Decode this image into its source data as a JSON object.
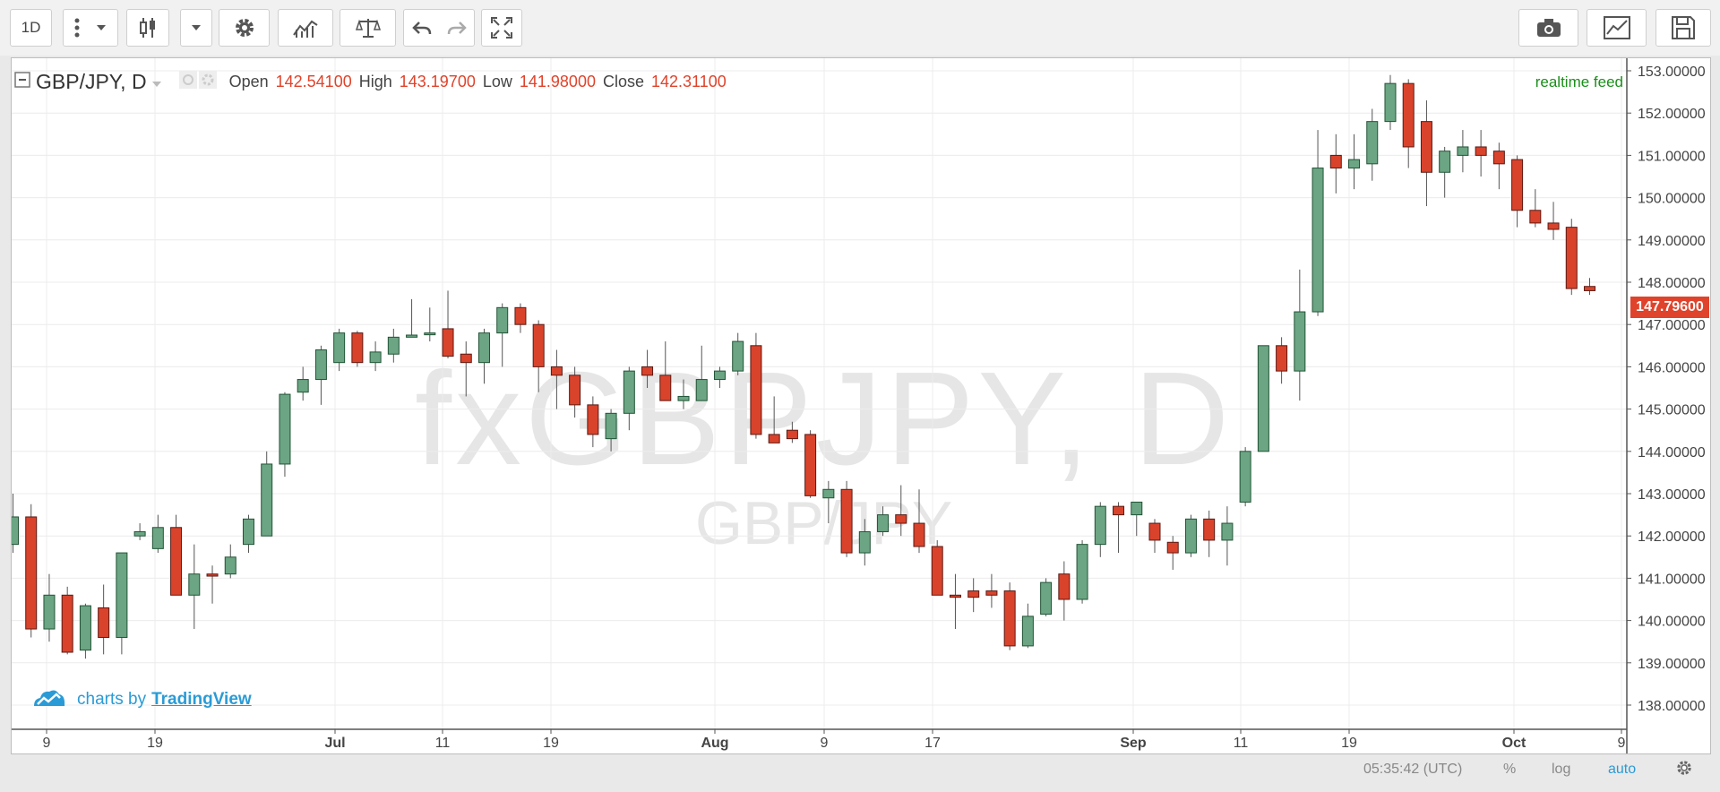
{
  "toolbar": {
    "interval_label": "1D",
    "buttons": [
      "more-icon",
      "dropdown-icon",
      "candles-icon",
      "dropdown-icon",
      "gear-icon",
      "indicators-icon",
      "compare-icon",
      "undo-icon",
      "redo-icon",
      "fullscreen-icon",
      "camera-icon",
      "chart-icon",
      "save-icon"
    ]
  },
  "legend": {
    "symbol": "GBP/JPY, D",
    "open_label": "Open",
    "open_value": "142.54100",
    "high_label": "High",
    "high_value": "143.19700",
    "low_label": "Low",
    "low_value": "141.98000",
    "close_label": "Close",
    "close_value": "142.31100"
  },
  "realtime_label": "realtime feed",
  "watermark": {
    "main": "fxGBPJPY, D",
    "sub": "GBP/JPY"
  },
  "branding": {
    "prefix": "charts by",
    "name": "TradingView"
  },
  "last_price": "147.79600",
  "bottom_bar": {
    "time": "05:35:42 (UTC)",
    "percent": "%",
    "log": "log",
    "auto": "auto"
  },
  "colors": {
    "up": "#6ba583",
    "down": "#d9432c",
    "up_border": "#225437",
    "down_border": "#5b1a13",
    "accent": "#2a9bd6"
  },
  "chart_data": {
    "type": "candlestick",
    "title": "GBP/JPY, D",
    "ylim": [
      137.8,
      153.5
    ],
    "y_ticks": [
      "153.00000",
      "152.00000",
      "151.00000",
      "150.00000",
      "149.00000",
      "148.00000",
      "147.00000",
      "146.00000",
      "145.00000",
      "144.00000",
      "143.00000",
      "142.00000",
      "141.00000",
      "140.00000",
      "139.00000",
      "138.00000"
    ],
    "x_ticks": [
      "9",
      "19",
      "Jul",
      "11",
      "19",
      "Aug",
      "9",
      "17",
      "Sep",
      "11",
      "19",
      "Oct",
      "9"
    ],
    "grid": true,
    "candles": [
      {
        "o": 141.8,
        "h": 143.0,
        "l": 141.6,
        "c": 142.45
      },
      {
        "o": 142.45,
        "h": 142.75,
        "l": 139.6,
        "c": 139.8
      },
      {
        "o": 139.8,
        "h": 141.1,
        "l": 139.5,
        "c": 140.6
      },
      {
        "o": 140.6,
        "h": 140.8,
        "l": 139.2,
        "c": 139.25
      },
      {
        "o": 139.3,
        "h": 140.4,
        "l": 139.1,
        "c": 140.35
      },
      {
        "o": 140.3,
        "h": 140.85,
        "l": 139.2,
        "c": 139.6
      },
      {
        "o": 139.6,
        "h": 141.6,
        "l": 139.2,
        "c": 141.6
      },
      {
        "o": 142.0,
        "h": 142.3,
        "l": 141.9,
        "c": 142.1
      },
      {
        "o": 141.7,
        "h": 142.5,
        "l": 141.6,
        "c": 142.2
      },
      {
        "o": 142.2,
        "h": 142.5,
        "l": 140.6,
        "c": 140.6
      },
      {
        "o": 140.6,
        "h": 141.8,
        "l": 139.8,
        "c": 141.1
      },
      {
        "o": 141.1,
        "h": 141.3,
        "l": 140.4,
        "c": 141.05
      },
      {
        "o": 141.1,
        "h": 141.8,
        "l": 141.0,
        "c": 141.5
      },
      {
        "o": 141.8,
        "h": 142.5,
        "l": 141.6,
        "c": 142.4
      },
      {
        "o": 142.0,
        "h": 144.0,
        "l": 142.0,
        "c": 143.7
      },
      {
        "o": 143.7,
        "h": 145.4,
        "l": 143.4,
        "c": 145.35
      },
      {
        "o": 145.4,
        "h": 146.0,
        "l": 145.2,
        "c": 145.7
      },
      {
        "o": 145.7,
        "h": 146.5,
        "l": 145.1,
        "c": 146.4
      },
      {
        "o": 146.1,
        "h": 146.9,
        "l": 145.9,
        "c": 146.8
      },
      {
        "o": 146.8,
        "h": 146.85,
        "l": 146.0,
        "c": 146.1
      },
      {
        "o": 146.1,
        "h": 146.6,
        "l": 145.9,
        "c": 146.35
      },
      {
        "o": 146.3,
        "h": 146.9,
        "l": 146.1,
        "c": 146.7
      },
      {
        "o": 146.7,
        "h": 147.6,
        "l": 146.7,
        "c": 146.75
      },
      {
        "o": 146.8,
        "h": 147.4,
        "l": 146.6,
        "c": 146.8
      },
      {
        "o": 146.9,
        "h": 147.8,
        "l": 146.2,
        "c": 146.25
      },
      {
        "o": 146.3,
        "h": 146.6,
        "l": 145.3,
        "c": 146.1
      },
      {
        "o": 146.1,
        "h": 146.9,
        "l": 145.6,
        "c": 146.8
      },
      {
        "o": 146.8,
        "h": 147.5,
        "l": 146.0,
        "c": 147.4
      },
      {
        "o": 147.4,
        "h": 147.5,
        "l": 146.8,
        "c": 147.0
      },
      {
        "o": 147.0,
        "h": 147.1,
        "l": 145.4,
        "c": 146.0
      },
      {
        "o": 146.0,
        "h": 146.4,
        "l": 145.0,
        "c": 145.8
      },
      {
        "o": 145.8,
        "h": 146.0,
        "l": 144.8,
        "c": 145.1
      },
      {
        "o": 145.1,
        "h": 145.3,
        "l": 144.1,
        "c": 144.4
      },
      {
        "o": 144.3,
        "h": 145.0,
        "l": 144.0,
        "c": 144.9
      },
      {
        "o": 144.9,
        "h": 146.0,
        "l": 144.5,
        "c": 145.9
      },
      {
        "o": 146.0,
        "h": 146.4,
        "l": 145.5,
        "c": 145.8
      },
      {
        "o": 145.8,
        "h": 146.6,
        "l": 145.2,
        "c": 145.2
      },
      {
        "o": 145.2,
        "h": 145.7,
        "l": 145.0,
        "c": 145.3
      },
      {
        "o": 145.2,
        "h": 146.5,
        "l": 145.2,
        "c": 145.7
      },
      {
        "o": 145.7,
        "h": 146.0,
        "l": 145.5,
        "c": 145.9
      },
      {
        "o": 145.9,
        "h": 146.8,
        "l": 145.8,
        "c": 146.6
      },
      {
        "o": 146.5,
        "h": 146.8,
        "l": 144.3,
        "c": 144.4
      },
      {
        "o": 144.4,
        "h": 145.3,
        "l": 144.2,
        "c": 144.2
      },
      {
        "o": 144.5,
        "h": 144.7,
        "l": 144.2,
        "c": 144.3
      },
      {
        "o": 144.4,
        "h": 144.5,
        "l": 142.9,
        "c": 142.95
      },
      {
        "o": 142.9,
        "h": 143.3,
        "l": 142.3,
        "c": 143.1
      },
      {
        "o": 143.1,
        "h": 143.3,
        "l": 141.5,
        "c": 141.6
      },
      {
        "o": 141.6,
        "h": 142.4,
        "l": 141.3,
        "c": 142.1
      },
      {
        "o": 142.1,
        "h": 142.7,
        "l": 142.0,
        "c": 142.5
      },
      {
        "o": 142.5,
        "h": 143.2,
        "l": 142.0,
        "c": 142.3
      },
      {
        "o": 142.3,
        "h": 143.1,
        "l": 141.6,
        "c": 141.75
      },
      {
        "o": 141.75,
        "h": 141.9,
        "l": 140.6,
        "c": 140.6
      },
      {
        "o": 140.6,
        "h": 141.1,
        "l": 139.8,
        "c": 140.55
      },
      {
        "o": 140.7,
        "h": 141.0,
        "l": 140.2,
        "c": 140.55
      },
      {
        "o": 140.7,
        "h": 141.1,
        "l": 140.3,
        "c": 140.6
      },
      {
        "o": 140.7,
        "h": 140.9,
        "l": 139.3,
        "c": 139.4
      },
      {
        "o": 139.4,
        "h": 140.4,
        "l": 139.35,
        "c": 140.1
      },
      {
        "o": 140.15,
        "h": 141.0,
        "l": 140.1,
        "c": 140.9
      },
      {
        "o": 141.1,
        "h": 141.4,
        "l": 140.0,
        "c": 140.5
      },
      {
        "o": 140.5,
        "h": 141.9,
        "l": 140.4,
        "c": 141.8
      },
      {
        "o": 141.8,
        "h": 142.8,
        "l": 141.5,
        "c": 142.7
      },
      {
        "o": 142.7,
        "h": 142.8,
        "l": 141.6,
        "c": 142.5
      },
      {
        "o": 142.5,
        "h": 142.8,
        "l": 142.0,
        "c": 142.8
      },
      {
        "o": 142.3,
        "h": 142.4,
        "l": 141.6,
        "c": 141.9
      },
      {
        "o": 141.85,
        "h": 142.0,
        "l": 141.2,
        "c": 141.6
      },
      {
        "o": 141.6,
        "h": 142.5,
        "l": 141.5,
        "c": 142.4
      },
      {
        "o": 142.4,
        "h": 142.6,
        "l": 141.5,
        "c": 141.9
      },
      {
        "o": 141.9,
        "h": 142.7,
        "l": 141.3,
        "c": 142.3
      },
      {
        "o": 142.8,
        "h": 144.1,
        "l": 142.7,
        "c": 144.0
      },
      {
        "o": 144.0,
        "h": 146.5,
        "l": 144.0,
        "c": 146.5
      },
      {
        "o": 146.5,
        "h": 146.7,
        "l": 145.6,
        "c": 145.9
      },
      {
        "o": 145.9,
        "h": 148.3,
        "l": 145.2,
        "c": 147.3
      },
      {
        "o": 147.3,
        "h": 151.6,
        "l": 147.2,
        "c": 150.7
      },
      {
        "o": 151.0,
        "h": 151.5,
        "l": 150.1,
        "c": 150.7
      },
      {
        "o": 150.7,
        "h": 151.5,
        "l": 150.2,
        "c": 150.9
      },
      {
        "o": 150.8,
        "h": 152.1,
        "l": 150.4,
        "c": 151.8
      },
      {
        "o": 151.8,
        "h": 152.9,
        "l": 151.6,
        "c": 152.7
      },
      {
        "o": 152.7,
        "h": 152.8,
        "l": 150.7,
        "c": 151.2
      },
      {
        "o": 151.8,
        "h": 152.3,
        "l": 149.8,
        "c": 150.6
      },
      {
        "o": 150.6,
        "h": 151.2,
        "l": 150.0,
        "c": 151.1
      },
      {
        "o": 151.0,
        "h": 151.6,
        "l": 150.6,
        "c": 151.2
      },
      {
        "o": 151.2,
        "h": 151.6,
        "l": 150.5,
        "c": 151.0
      },
      {
        "o": 151.1,
        "h": 151.3,
        "l": 150.2,
        "c": 150.8
      },
      {
        "o": 150.9,
        "h": 151.0,
        "l": 149.3,
        "c": 149.7
      },
      {
        "o": 149.7,
        "h": 150.2,
        "l": 149.3,
        "c": 149.4
      },
      {
        "o": 149.4,
        "h": 149.9,
        "l": 149.0,
        "c": 149.25
      },
      {
        "o": 149.3,
        "h": 149.5,
        "l": 147.7,
        "c": 147.85
      },
      {
        "o": 147.9,
        "h": 148.1,
        "l": 147.7,
        "c": 147.8
      }
    ]
  }
}
